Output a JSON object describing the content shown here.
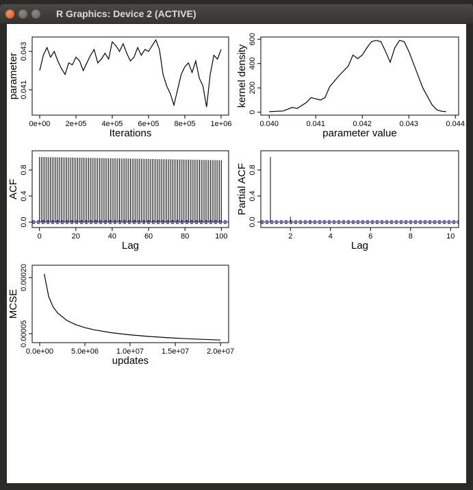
{
  "window": {
    "title": "R Graphics: Device 2 (ACTIVE)"
  },
  "chart_data": [
    {
      "type": "line",
      "ylabel": "parameter",
      "xlabel": "Iterations",
      "color": "#000000",
      "x": [
        0,
        20000,
        40000,
        60000,
        80000,
        100000,
        120000,
        140000,
        160000,
        180000,
        200000,
        220000,
        240000,
        260000,
        280000,
        300000,
        320000,
        340000,
        360000,
        380000,
        400000,
        420000,
        440000,
        460000,
        480000,
        500000,
        520000,
        540000,
        560000,
        580000,
        600000,
        620000,
        640000,
        660000,
        680000,
        700000,
        720000,
        740000,
        760000,
        780000,
        800000,
        820000,
        840000,
        860000,
        880000,
        900000,
        920000,
        940000,
        960000,
        980000,
        1000000
      ],
      "values": [
        0.042,
        0.0428,
        0.0432,
        0.0427,
        0.043,
        0.0425,
        0.0421,
        0.0418,
        0.0424,
        0.0423,
        0.0427,
        0.0425,
        0.042,
        0.0424,
        0.0428,
        0.0431,
        0.0424,
        0.0426,
        0.0429,
        0.0426,
        0.0435,
        0.0433,
        0.043,
        0.0434,
        0.0429,
        0.0425,
        0.0427,
        0.0432,
        0.0428,
        0.0431,
        0.043,
        0.0433,
        0.0436,
        0.0431,
        0.0418,
        0.0412,
        0.0408,
        0.0402,
        0.041,
        0.0418,
        0.0422,
        0.0424,
        0.0419,
        0.0425,
        0.0416,
        0.0412,
        0.0401,
        0.0418,
        0.0428,
        0.0426,
        0.0431
      ],
      "xlim": [
        -41509,
        1041509
      ],
      "ylim": [
        0.03968,
        0.04375
      ],
      "xticks": [
        {
          "value": 0,
          "label": "0e+00"
        },
        {
          "value": 200000,
          "label": "2e+05"
        },
        {
          "value": 400000,
          "label": "4e+05"
        },
        {
          "value": 600000,
          "label": "6e+05"
        },
        {
          "value": 800000,
          "label": "8e+05"
        },
        {
          "value": 1000000,
          "label": "1e+06"
        }
      ],
      "yticks": [
        0.041,
        0.043
      ]
    },
    {
      "type": "line",
      "ylabel": "kernel density",
      "xlabel": "parameter value",
      "color": "#000000",
      "x": [
        0.04,
        0.0403,
        0.0405,
        0.0406,
        0.0408,
        0.0409,
        0.041,
        0.0411,
        0.0412,
        0.0413,
        0.0415,
        0.0417,
        0.0418,
        0.0419,
        0.042,
        0.0421,
        0.0422,
        0.0423,
        0.0424,
        0.0425,
        0.0426,
        0.0427,
        0.0428,
        0.0429,
        0.043,
        0.0431,
        0.0432,
        0.0433,
        0.0434,
        0.0435,
        0.0436,
        0.0437,
        0.0438
      ],
      "values": [
        5,
        10,
        40,
        30,
        80,
        120,
        110,
        100,
        120,
        210,
        300,
        380,
        470,
        440,
        470,
        530,
        580,
        590,
        580,
        500,
        410,
        530,
        590,
        580,
        500,
        400,
        300,
        200,
        130,
        60,
        20,
        8,
        5
      ],
      "xlim": [
        0.03982,
        0.04407
      ],
      "ylim": [
        -24,
        618
      ],
      "xticks": [
        {
          "value": 0.04,
          "label": "0.040"
        },
        0.041,
        0.042,
        0.043,
        0.044
      ],
      "yticks": [
        0,
        200,
        400,
        600
      ]
    },
    {
      "type": "stem",
      "ylabel": "ACF",
      "xlabel": "Lag",
      "color": "#000000",
      "ci": [
        -0.02,
        0.02
      ],
      "ci_color": "#1c1cb4",
      "x": [
        0,
        1,
        2,
        3,
        4,
        5,
        6,
        7,
        8,
        9,
        10,
        11,
        12,
        13,
        14,
        15,
        16,
        17,
        18,
        19,
        20,
        21,
        22,
        23,
        24,
        25,
        26,
        27,
        28,
        29,
        30,
        31,
        32,
        33,
        34,
        35,
        36,
        37,
        38,
        39,
        40,
        41,
        42,
        43,
        44,
        45,
        46,
        47,
        48,
        49,
        50,
        51,
        52,
        53,
        54,
        55,
        56,
        57,
        58,
        59,
        60,
        61,
        62,
        63,
        64,
        65,
        66,
        67,
        68,
        69,
        70,
        71,
        72,
        73,
        74,
        75,
        76,
        77,
        78,
        79,
        80,
        81,
        82,
        83,
        84,
        85,
        86,
        87,
        88,
        89,
        90,
        91,
        92,
        93,
        94,
        95,
        96,
        97,
        98,
        99,
        100
      ],
      "values": [
        1,
        0.999,
        0.999,
        0.998,
        0.998,
        0.997,
        0.997,
        0.996,
        0.996,
        0.995,
        0.995,
        0.994,
        0.994,
        0.993,
        0.993,
        0.992,
        0.992,
        0.991,
        0.991,
        0.99,
        0.99,
        0.989,
        0.989,
        0.988,
        0.988,
        0.987,
        0.987,
        0.986,
        0.986,
        0.985,
        0.985,
        0.984,
        0.984,
        0.983,
        0.983,
        0.982,
        0.982,
        0.981,
        0.981,
        0.98,
        0.98,
        0.979,
        0.979,
        0.978,
        0.978,
        0.977,
        0.977,
        0.976,
        0.976,
        0.975,
        0.975,
        0.974,
        0.974,
        0.973,
        0.973,
        0.972,
        0.972,
        0.971,
        0.971,
        0.97,
        0.97,
        0.969,
        0.969,
        0.968,
        0.968,
        0.967,
        0.967,
        0.966,
        0.966,
        0.965,
        0.965,
        0.964,
        0.964,
        0.963,
        0.963,
        0.962,
        0.962,
        0.961,
        0.961,
        0.96,
        0.96,
        0.959,
        0.959,
        0.958,
        0.958,
        0.957,
        0.957,
        0.956,
        0.956,
        0.955,
        0.955,
        0.954,
        0.954,
        0.953,
        0.953,
        0.952,
        0.952,
        0.951,
        0.951,
        0.95,
        0.95
      ],
      "xlim": [
        -4,
        104
      ],
      "ylim": [
        -0.084,
        1.095
      ],
      "xticks": [
        0,
        20,
        40,
        60,
        80,
        100
      ],
      "yticks": [
        {
          "value": 0,
          "label": "0.0"
        },
        0.4,
        0.8
      ]
    },
    {
      "type": "stem",
      "ylabel": "Partial ACF",
      "xlabel": "Lag",
      "color": "#000000",
      "ci": [
        -0.02,
        0.02
      ],
      "ci_color": "#1c1cb4",
      "x": [
        1,
        2,
        3,
        4,
        5,
        6,
        7,
        8,
        9,
        10
      ],
      "values": [
        0.998,
        0.08,
        0.015,
        0.005,
        -0.003,
        0.004,
        -0.002,
        0.003,
        -0.004,
        0.002
      ],
      "xlim": [
        0.52,
        10.4
      ],
      "ylim": [
        -0.084,
        1.095
      ],
      "xticks": [
        2,
        4,
        6,
        8,
        10
      ],
      "yticks": [
        {
          "value": 0,
          "label": "0.0"
        },
        0.4,
        0.8
      ]
    },
    {
      "type": "line",
      "ylabel": "MCSE",
      "xlabel": "updates",
      "color": "#000000",
      "x": [
        500000,
        1000000,
        1500000,
        2000000,
        3000000,
        4000000,
        5000000,
        6000000,
        8000000,
        10000000,
        12000000,
        14000000,
        16000000,
        18000000,
        20000000
      ],
      "values": [
        0.00021,
        0.000149,
        0.000121,
        0.000105,
        8.57e-05,
        7.42e-05,
        6.64e-05,
        6.06e-05,
        5.25e-05,
        4.7e-05,
        4.29e-05,
        3.97e-05,
        3.71e-05,
        3.5e-05,
        3.32e-05
      ],
      "xlim": [
        -830000,
        20900000
      ],
      "ylim": [
        2.62e-05,
        0.000233
      ],
      "xticks": [
        {
          "value": 0,
          "label": "0.0e+00"
        },
        {
          "value": 5000000,
          "label": "5.0e+06"
        },
        {
          "value": 10000000,
          "label": "1.0e+07"
        },
        {
          "value": 15000000,
          "label": "1.5e+07"
        },
        {
          "value": 20000000,
          "label": "2.0e+07"
        }
      ],
      "yticks": [
        5e-05,
        {
          "value": 0.0002,
          "label": "0.00020"
        }
      ]
    }
  ]
}
